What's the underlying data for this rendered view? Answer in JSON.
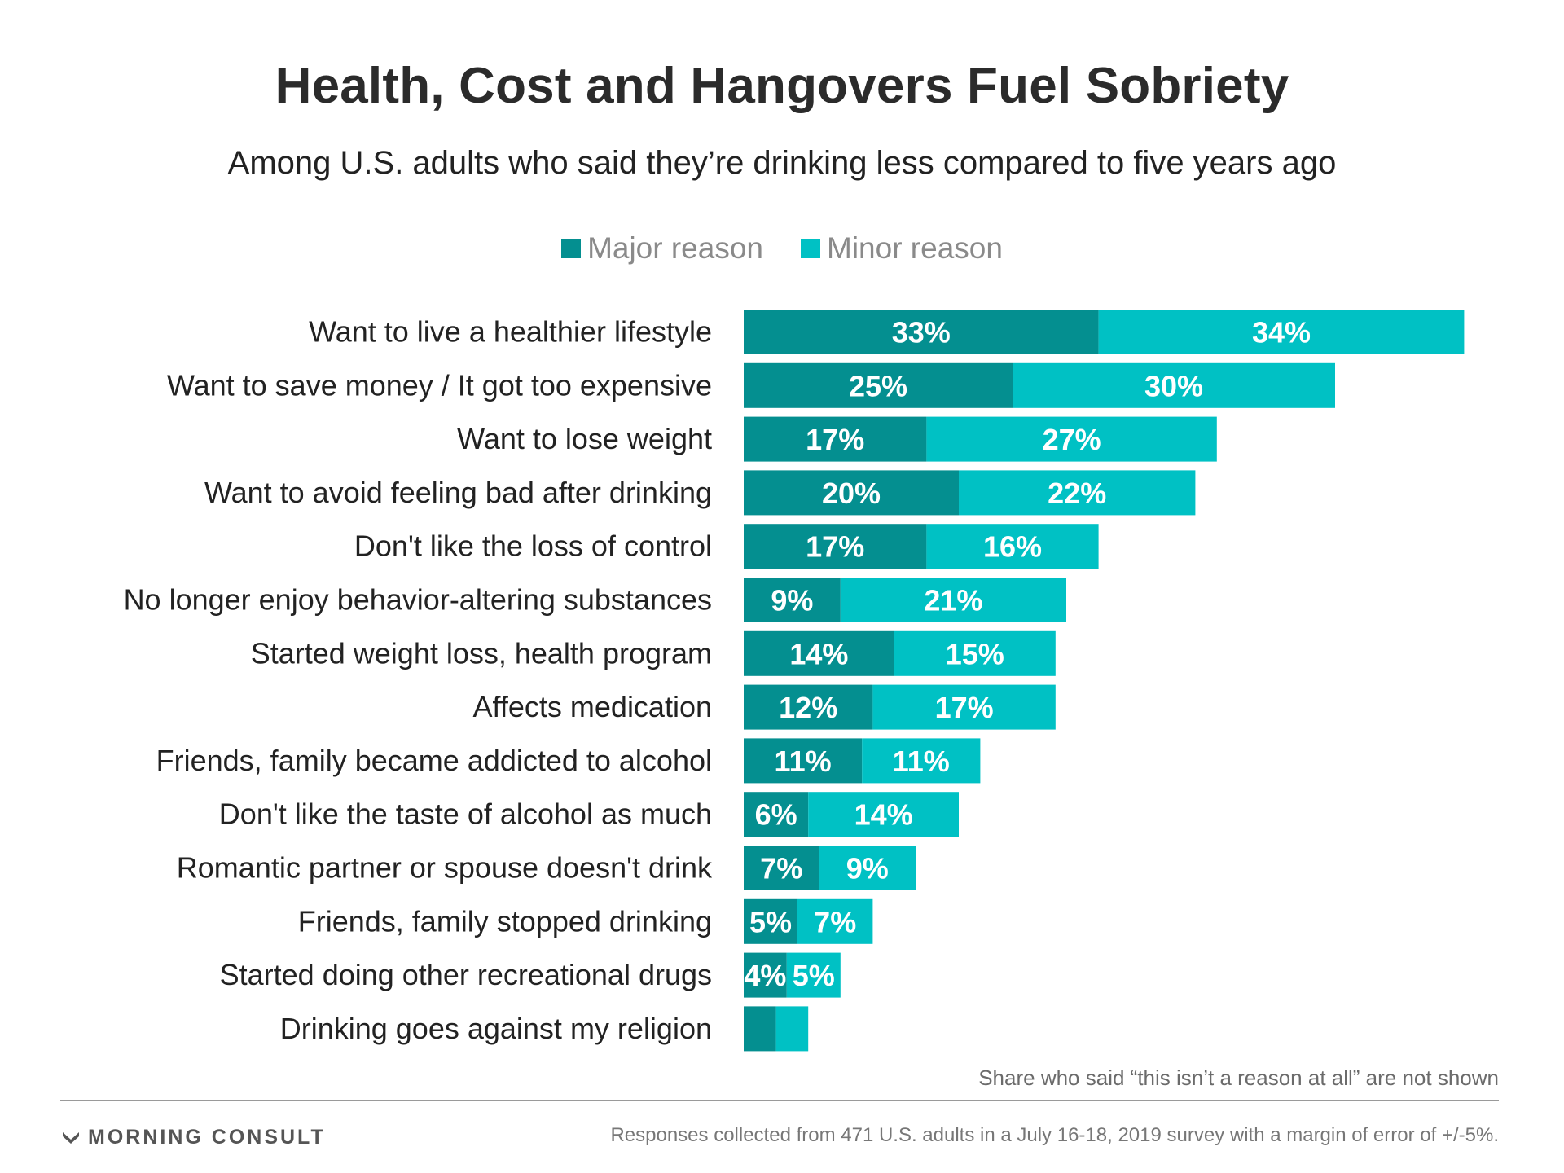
{
  "header": {
    "title": "Health, Cost and Hangovers Fuel Sobriety",
    "subtitle": "Among U.S. adults who said they’re drinking less compared to five years ago"
  },
  "legend": {
    "major_label": "Major reason",
    "minor_label": "Minor reason"
  },
  "colors": {
    "major": "#048f90",
    "minor": "#00c1c4"
  },
  "chart_data": {
    "type": "bar",
    "orientation": "horizontal",
    "stacked": true,
    "categories": [
      "Want to live a healthier lifestyle",
      "Want to save money / It got too expensive",
      "Want to lose weight",
      "Want to avoid feeling bad after drinking",
      "Don't like the loss of control",
      "No longer enjoy behavior-altering substances",
      "Started weight loss, health program",
      "Affects medication",
      "Friends, family became addicted to alcohol",
      "Don't like the taste of alcohol as much",
      "Romantic partner or spouse doesn't drink",
      "Friends, family stopped drinking",
      "Started doing other recreational drugs",
      "Drinking goes against my religion"
    ],
    "series": [
      {
        "name": "Major reason",
        "values": [
          33,
          25,
          17,
          20,
          17,
          9,
          14,
          12,
          11,
          6,
          7,
          5,
          4,
          3
        ],
        "labels": [
          "33%",
          "25%",
          "17%",
          "20%",
          "17%",
          "9%",
          "14%",
          "12%",
          "11%",
          "6%",
          "7%",
          "5%",
          "4%",
          ""
        ]
      },
      {
        "name": "Minor reason",
        "values": [
          34,
          30,
          27,
          22,
          16,
          21,
          15,
          17,
          11,
          14,
          9,
          7,
          5,
          3
        ],
        "labels": [
          "34%",
          "30%",
          "27%",
          "22%",
          "16%",
          "21%",
          "15%",
          "17%",
          "11%",
          "14%",
          "9%",
          "7%",
          "5%",
          ""
        ]
      }
    ],
    "xlim": [
      0,
      67
    ],
    "grid": false,
    "legend_position": "top-center"
  },
  "footer": {
    "note": "Share who said “this isn’t a reason at all” are not shown",
    "brand": "MORNING CONSULT",
    "source": "Responses collected from 471 U.S. adults in a July 16-18, 2019 survey with a margin of error of +/-5%."
  }
}
